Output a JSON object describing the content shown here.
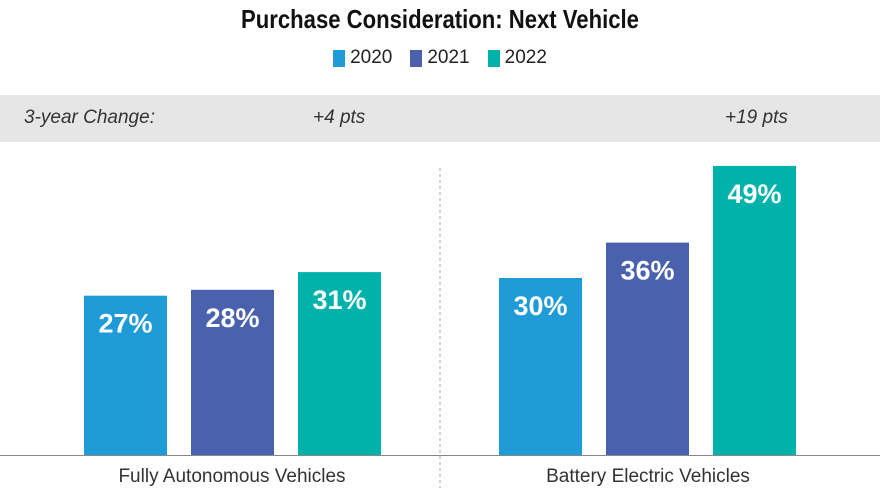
{
  "chart_data": {
    "type": "bar",
    "title": "Purchase Consideration: Next Vehicle",
    "categories": [
      "Fully Autonomous Vehicles",
      "Battery Electric Vehicles"
    ],
    "series": [
      {
        "name": "2020",
        "color": "#1f9bd7",
        "values": [
          27,
          30
        ]
      },
      {
        "name": "2021",
        "color": "#4a62ae",
        "values": [
          28,
          36
        ]
      },
      {
        "name": "2022",
        "color": "#00b2a9",
        "values": [
          31,
          49
        ]
      }
    ],
    "value_suffix": "%",
    "ylim": [
      0,
      52
    ],
    "legend": "top-center",
    "change_label": "3-year Change:",
    "changes": [
      "+4 pts",
      "+19 pts"
    ]
  }
}
